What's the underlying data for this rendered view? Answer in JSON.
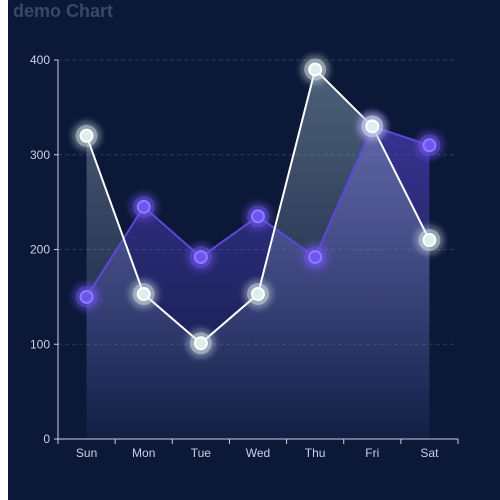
{
  "chart_data": {
    "type": "line",
    "title": "demo Chart",
    "categories": [
      "Sun",
      "Mon",
      "Tue",
      "Wed",
      "Thu",
      "Fri",
      "Sat"
    ],
    "ylim": [
      0,
      400
    ],
    "yticks": [
      "0",
      "100",
      "200",
      "300",
      "400"
    ],
    "grid": "horizontal dashed",
    "series": [
      {
        "values": [
          150,
          245,
          192,
          235,
          192,
          330,
          310
        ],
        "color": "#6f55f0",
        "line_color": "#5a48d8",
        "area": true
      },
      {
        "values": [
          320,
          153,
          101,
          153,
          390,
          330,
          210
        ],
        "color": "#ddeeee",
        "line_color": "#ffffff",
        "area": true
      }
    ]
  },
  "colors": {
    "background": "#0b1838",
    "grid": "#2e3a5c",
    "axis": "#c9d1e4",
    "title": "#3a4766"
  }
}
